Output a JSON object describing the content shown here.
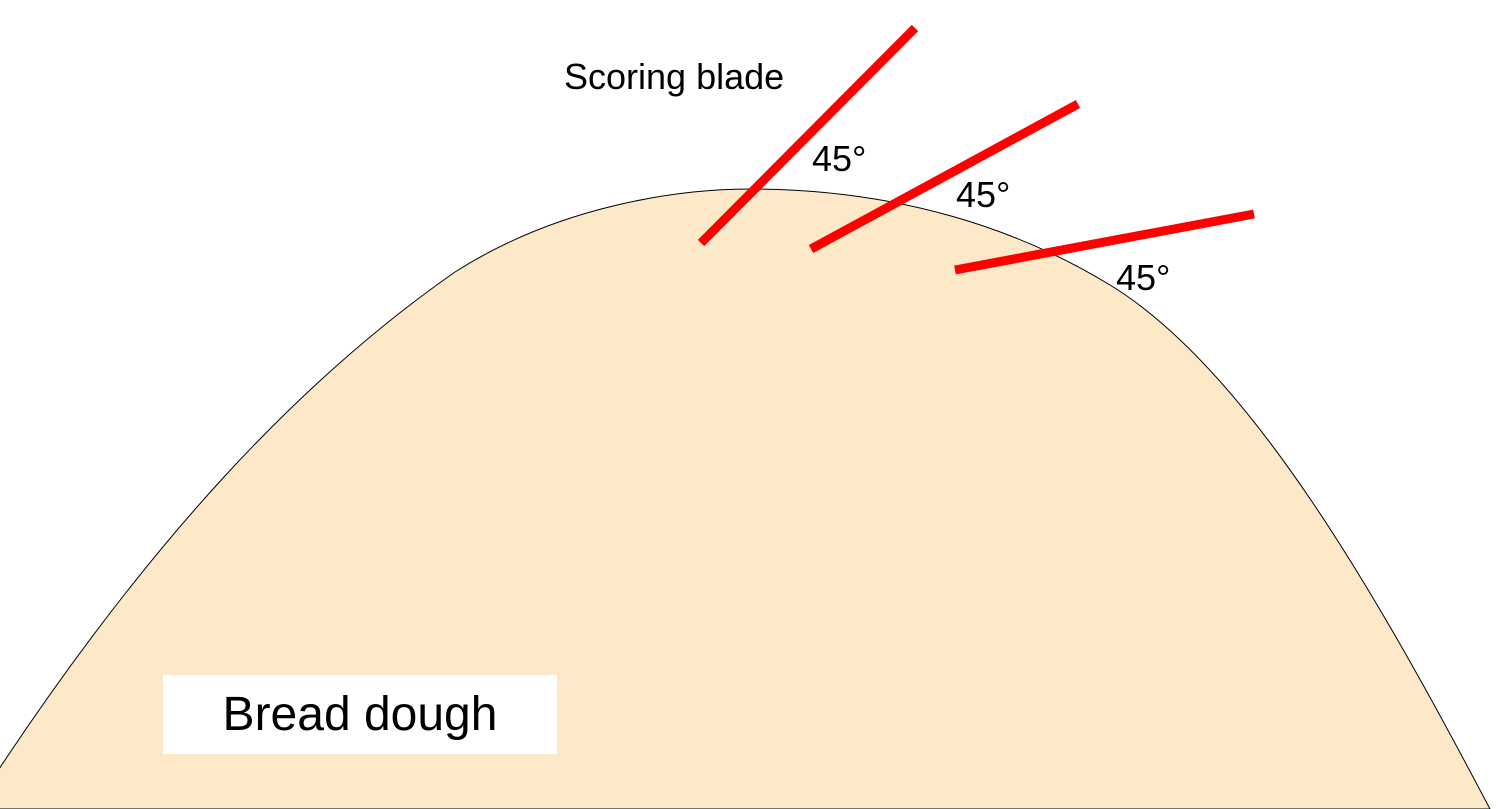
{
  "labels": {
    "blade": "Scoring blade",
    "dough": "Bread dough",
    "angles": [
      "45°",
      "45°",
      "45°"
    ]
  },
  "colors": {
    "dough_fill": "#FDE8C8",
    "blade": "#FF0000",
    "outline": "#000000"
  }
}
